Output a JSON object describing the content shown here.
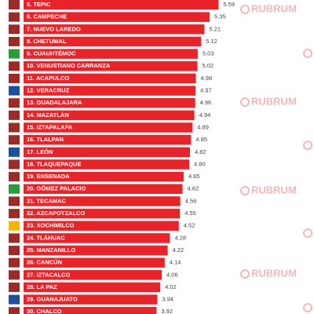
{
  "chart_data": {
    "type": "bar",
    "orientation": "horizontal",
    "color": "#e8242b",
    "watermark": "RUBRUM",
    "categories": [
      "5. TEPIC",
      "6. CAMPECHE",
      "7. NUEVO LAREDO",
      "8. CHETUMAL",
      "9. CUAUHTÉMOC",
      "10. VENUSTIANO CARRANZA",
      "11. ACAPULCO",
      "12. VERACRUZ",
      "13. GUADALAJARA",
      "14. MAZATLÁN",
      "15. IZTAPALAPA",
      "16. TLALPAN",
      "17. LEÓN",
      "18. TLAQUEPAQUE",
      "19. ENSENADA",
      "20. GÓMEZ PALACIO",
      "21. TECAMAC",
      "22. AZCAPOTZALCO",
      "23. XOCHIMILCO",
      "24. TLÁHUAC",
      "25. MANZANILLO",
      "26. CANCÚN",
      "27. IZTACALCO",
      "28. LA PAZ",
      "29. GUANAJUATO",
      "30. CHALCO"
    ],
    "values": [
      5.59,
      5.35,
      5.21,
      5.12,
      5.03,
      5.02,
      4.98,
      4.97,
      4.96,
      4.94,
      4.89,
      4.85,
      4.82,
      4.8,
      4.65,
      4.62,
      4.56,
      4.55,
      4.52,
      4.28,
      4.22,
      4.14,
      4.06,
      4.02,
      3.94,
      3.92
    ],
    "value_labels": [
      "5.59",
      "5.35",
      "5.21",
      "5.12",
      "5.03",
      "5.02",
      "4.98",
      "4.97",
      "4.96",
      "4.94",
      "4.89",
      "4.85",
      "4.82",
      "4.80",
      "4.65",
      "4.62",
      "4.56",
      "4.55",
      "4.52",
      "4.28",
      "4.22",
      "4.14",
      "4.06",
      "4.02",
      "3.94",
      "3.92"
    ]
  }
}
